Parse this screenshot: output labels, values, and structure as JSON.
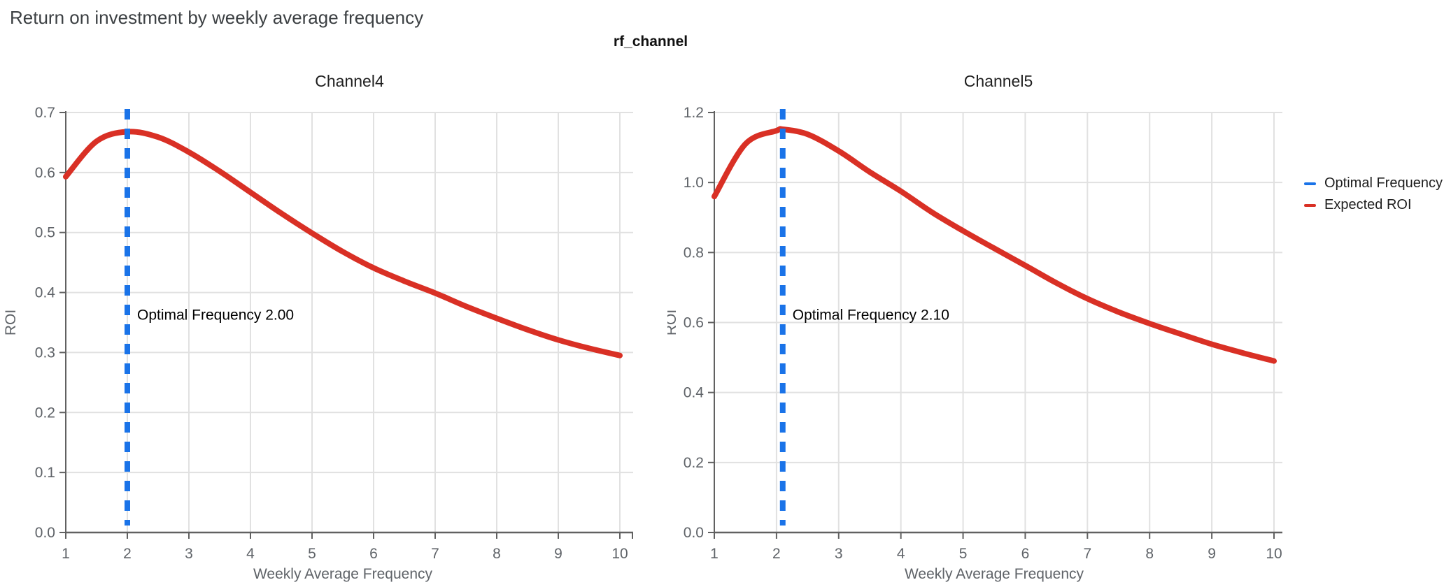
{
  "page": {
    "title": "Return on investment by weekly average frequency",
    "subtitle": "rf_channel"
  },
  "legend": {
    "items": [
      {
        "label": "Optimal Frequency",
        "color": "#1a73e8"
      },
      {
        "label": "Expected ROI",
        "color": "#d93025"
      }
    ]
  },
  "colors": {
    "optimal_line": "#1a73e8",
    "roi_curve": "#d93025",
    "axis": "#616161",
    "grid": "#e1e1e1",
    "tick_text": "#5f6368",
    "title_text": "#1f1f1f",
    "annotation_text": "#000000"
  },
  "chart_data": [
    {
      "type": "line",
      "title": "Channel4",
      "xlabel": "Weekly Average Frequency",
      "ylabel": "ROI",
      "xlim": [
        1,
        10
      ],
      "ylim": [
        0,
        0.7
      ],
      "grid": true,
      "legend_position": "top-right-outside",
      "xticks": [
        1,
        2,
        3,
        4,
        5,
        6,
        7,
        8,
        9,
        10
      ],
      "xtick_labels": [
        "1",
        "2",
        "3",
        "4",
        "5",
        "6",
        "7",
        "8",
        "9",
        "10"
      ],
      "yticks": [
        0,
        0.1,
        0.2,
        0.3,
        0.4,
        0.5,
        0.6,
        0.7
      ],
      "ytick_labels": [
        "0.0",
        "0.1",
        "0.2",
        "0.3",
        "0.4",
        "0.5",
        "0.6",
        "0.7"
      ],
      "series": [
        {
          "name": "Expected ROI",
          "color": "#d93025",
          "x": [
            1,
            1.5,
            2,
            2.5,
            3,
            3.5,
            4,
            4.5,
            5,
            5.5,
            6,
            6.5,
            7,
            7.5,
            8,
            8.5,
            9,
            9.5,
            10
          ],
          "y": [
            0.593,
            0.652,
            0.668,
            0.659,
            0.634,
            0.602,
            0.567,
            0.532,
            0.499,
            0.468,
            0.441,
            0.419,
            0.399,
            0.377,
            0.357,
            0.338,
            0.321,
            0.307,
            0.295
          ]
        }
      ],
      "optimal_frequency": {
        "label": "Optimal Frequency",
        "value": 2.0,
        "display": "2.00",
        "color": "#1a73e8"
      },
      "annotation_text": "Optimal Frequency  2.00"
    },
    {
      "type": "line",
      "title": "Channel5",
      "xlabel": "Weekly Average Frequency",
      "ylabel": "ROI",
      "xlim": [
        1,
        10
      ],
      "ylim": [
        0,
        1.2
      ],
      "grid": true,
      "legend_position": "top-right-outside",
      "xticks": [
        1,
        2,
        3,
        4,
        5,
        6,
        7,
        8,
        9,
        10
      ],
      "xtick_labels": [
        "1",
        "2",
        "3",
        "4",
        "5",
        "6",
        "7",
        "8",
        "9",
        "10"
      ],
      "yticks": [
        0,
        0.2,
        0.4,
        0.6,
        0.8,
        1.0,
        1.2
      ],
      "ytick_labels": [
        "0.0",
        "0.2",
        "0.4",
        "0.6",
        "0.8",
        "1.0",
        "1.2"
      ],
      "series": [
        {
          "name": "Expected ROI",
          "color": "#d93025",
          "x": [
            1,
            1.5,
            2,
            2.1,
            2.5,
            3,
            3.5,
            4,
            4.5,
            5,
            5.5,
            6,
            6.5,
            7,
            7.5,
            8,
            8.5,
            9,
            9.5,
            10
          ],
          "y": [
            0.96,
            1.11,
            1.148,
            1.152,
            1.138,
            1.09,
            1.03,
            0.975,
            0.915,
            0.862,
            0.812,
            0.763,
            0.713,
            0.668,
            0.63,
            0.597,
            0.567,
            0.538,
            0.513,
            0.49
          ]
        }
      ],
      "optimal_frequency": {
        "label": "Optimal Frequency",
        "value": 2.1,
        "display": "2.10",
        "color": "#1a73e8"
      },
      "annotation_text": "Optimal Frequency  2.10"
    }
  ]
}
